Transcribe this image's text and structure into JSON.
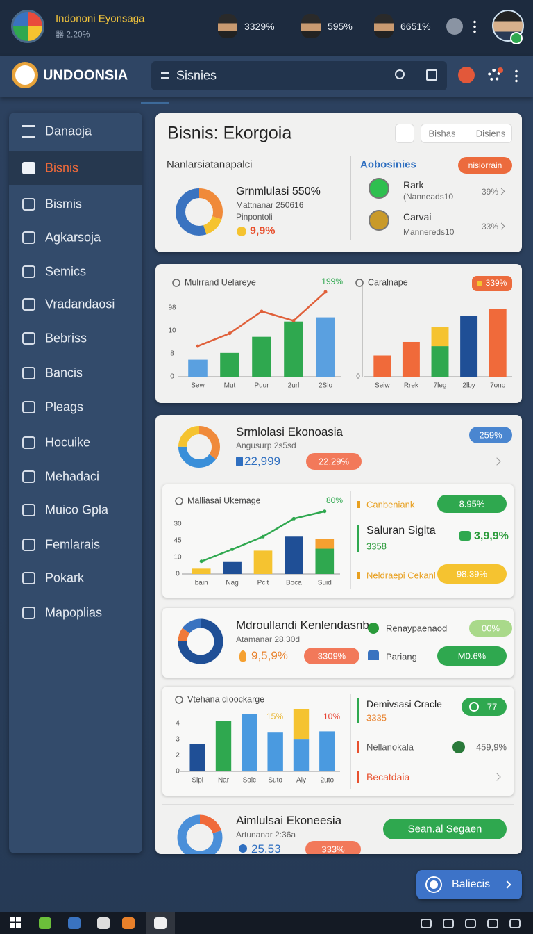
{
  "status_bar": {
    "app_name": "Indononi Eyonsaga",
    "app_sub": "器 2.20%",
    "stats": [
      "3329%",
      "595%",
      "6651%"
    ]
  },
  "navbar": {
    "brand": "UNDOONSIA",
    "search": "Sisnies"
  },
  "sidebar": {
    "items": [
      "Danaoja",
      "Bisnis",
      "Bismis",
      "Agkarsoja",
      "Semics",
      "Vradandaosi",
      "Bebriss",
      "Bancis",
      "Pleags",
      "Hocuike",
      "Mehadaci",
      "Muico Gpla",
      "Femlarais",
      "Pokark",
      "Mapoplias"
    ],
    "active": 1
  },
  "overview": {
    "title": "Bisnis: Ekorgoia",
    "tabs": [
      "Bishas",
      "Disiens"
    ],
    "left_heading": "Nanlarsiatanapalci",
    "donut": {
      "title": "Grnmlulasi 550%",
      "line1": "Mattnanar 250616",
      "line2": "Pinpontoli",
      "value": "9,9%",
      "segments": [
        {
          "value": 30,
          "color": "#f08a3a"
        },
        {
          "value": 15,
          "color": "#f5c330"
        },
        {
          "value": 55,
          "color": "#3a73c0"
        }
      ]
    },
    "right_heading": "Aobosinies",
    "button": "nislorrain",
    "items": [
      {
        "name": "Rark",
        "sub": "(Nanneads10",
        "value": "39%"
      },
      {
        "name": "Carvai",
        "sub": "Mannereds10",
        "value": "33%"
      }
    ]
  },
  "charts": [
    {
      "type": "bar",
      "title": "Mulrrand Uelareye",
      "badges": [
        {
          "text": "199%",
          "color": "#2fa84f",
          "pill": false
        }
      ],
      "y_labels": [
        "0",
        "8",
        "10",
        "98"
      ],
      "categories": [
        "Sew",
        "Mut",
        "Puur",
        "2url",
        "2Slo"
      ],
      "ylim": [
        0,
        100
      ],
      "series": [
        {
          "type": "bar",
          "values": [
            20,
            28,
            47,
            65,
            70
          ],
          "colors": [
            "#5aa0e0",
            "#2fa84f",
            "#2fa84f",
            "#2fa84f",
            "#5aa0e0"
          ]
        },
        {
          "type": "line",
          "values": [
            36,
            51,
            77,
            66,
            100
          ],
          "color": "#e0603a"
        }
      ]
    },
    {
      "type": "bar",
      "title": "Caralnape",
      "badges": [
        {
          "text": "339%",
          "color": "#ec6b3d",
          "pill": true
        }
      ],
      "y_labels": [
        "0"
      ],
      "categories": [
        "Seiw",
        "Rrek",
        "7leg",
        "2lby",
        "7ono"
      ],
      "ylim": [
        0,
        100
      ],
      "series": [
        {
          "type": "bar",
          "values": [
            25,
            41,
            36,
            72,
            80
          ],
          "colors": [
            "#f06a3a",
            "#f06a3a",
            "#2fa84f",
            "#1f4f96",
            "#f06a3a"
          ]
        },
        {
          "type": "bar",
          "values": [
            null,
            null,
            23,
            null,
            null
          ],
          "colors": [
            null,
            null,
            "#f5c330",
            null,
            null
          ]
        }
      ]
    },
    {
      "type": "bar",
      "title": "Malliasai Ukemage",
      "badges": [
        {
          "text": "80%",
          "color": "#2fa84f",
          "pill": false
        }
      ],
      "y_labels": [
        "0",
        "10",
        "45",
        "30"
      ],
      "categories": [
        "bain",
        "Nag",
        "Pcit",
        "Boca",
        "Suid"
      ],
      "ylim": [
        0,
        100
      ],
      "series": [
        {
          "type": "bar",
          "values": [
            8,
            19,
            35,
            56,
            38
          ],
          "colors": [
            "#f5c330",
            "#1f4f96",
            "#f5c330",
            "#1f4f96",
            "#2fa84f"
          ]
        },
        {
          "type": "bar",
          "values": [
            null,
            null,
            null,
            null,
            15
          ],
          "colors": [
            null,
            null,
            null,
            null,
            "#f5a030"
          ]
        },
        {
          "type": "line",
          "values": [
            19,
            37,
            56,
            83,
            94
          ],
          "color": "#2fa84f"
        }
      ]
    },
    {
      "type": "bar",
      "title": "Vtehana dioockarge",
      "badges": [
        {
          "text": "15%",
          "color": "#e8b020",
          "pill": false
        },
        {
          "text": "10%",
          "color": "#e84030",
          "pill": false
        }
      ],
      "y_labels": [
        "0",
        "2",
        "3",
        "4"
      ],
      "categories": [
        "Sipi",
        "Nar",
        "Solc",
        "Suto",
        "Aiy",
        "2uto"
      ],
      "ylim": [
        0,
        100
      ],
      "series": [
        {
          "type": "bar",
          "values": [
            44,
            80,
            92,
            62,
            51,
            64
          ],
          "colors": [
            "#1f4f96",
            "#2fa84f",
            "#4a9ae0",
            "#4a9ae0",
            "#4a9ae0",
            "#4a9ae0"
          ]
        },
        {
          "type": "bar",
          "values": [
            null,
            null,
            null,
            null,
            49,
            null
          ],
          "colors": [
            null,
            null,
            null,
            null,
            "#f5c330",
            null
          ]
        }
      ]
    }
  ],
  "simulation": {
    "title": "Srmlolasi Ekonoasia",
    "sub": "Angusurp 2s5sd",
    "value": "22,999",
    "badge": "22.29%",
    "pill": "259%",
    "segments": [
      {
        "value": 35,
        "color": "#f08a3a"
      },
      {
        "value": 40,
        "color": "#3a8fd9"
      },
      {
        "value": 25,
        "color": "#f5c330"
      }
    ]
  },
  "panel_c": {
    "items": [
      {
        "label": "Canbeniank",
        "value": "8.95%"
      },
      {
        "label": "Saluran Siglta",
        "sub": "3358",
        "value": "3,9,9%"
      },
      {
        "label": "Neldraepi Cekanl",
        "value": "98.39%"
      }
    ]
  },
  "projection": {
    "title": "Mdroullandi Kenlendasnb",
    "sub": "Atamanar 28.30d",
    "value": "9,5,9%",
    "badge": "3309%",
    "segments": [
      {
        "value": 75,
        "color": "#1f4f96"
      },
      {
        "value": 10,
        "color": "#f07a3a"
      },
      {
        "value": 15,
        "color": "#3a73c0"
      }
    ],
    "items": [
      {
        "label": "Renaypaenaod",
        "value": "00%"
      },
      {
        "label": "Pariang",
        "value": "M0.6%"
      }
    ]
  },
  "panel_e": {
    "items": [
      {
        "label": "Demivsasi Cracle",
        "sub": "3335",
        "value": "77"
      },
      {
        "label": "Nellanokala",
        "value": "459,9%"
      },
      {
        "label": "Becatdaia"
      }
    ]
  },
  "summary": {
    "title": "Aimlulsai Ekoneesia",
    "sub": "Artunanar 2:36a",
    "value": "25.53",
    "badge": "333%",
    "button": "Sean.al Segaen",
    "segments": [
      {
        "value": 20,
        "color": "#f06a3a"
      },
      {
        "value": 80,
        "color": "#4a8fd9"
      }
    ]
  },
  "float_button": "Baliecis"
}
